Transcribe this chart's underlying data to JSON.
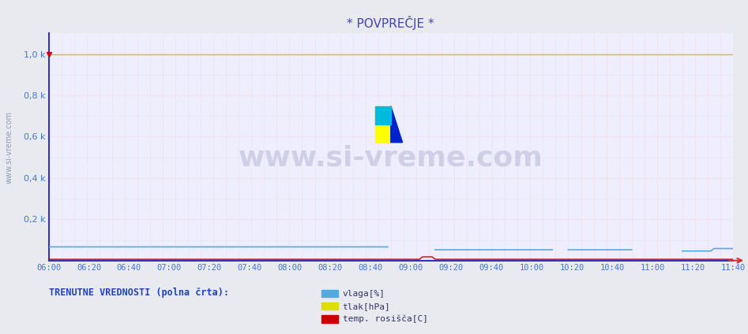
{
  "title": "* POVPREČJE *",
  "bg_color": "#e8eaf0",
  "plot_bg_color": "#eeeeff",
  "xmin": 0,
  "xmax": 216,
  "ymin": 0,
  "ymax": 1100,
  "yticks": [
    200,
    400,
    600,
    800,
    1000
  ],
  "ytick_labels": [
    "0,2 k",
    "0,4 k",
    "0,6 k",
    "0,8 k",
    "1,0 k"
  ],
  "xtick_labels": [
    "06:00",
    "06:20",
    "06:40",
    "07:00",
    "07:20",
    "07:40",
    "08:00",
    "08:20",
    "08:40",
    "09:00",
    "09:20",
    "09:40",
    "10:00",
    "10:20",
    "10:40",
    "11:00",
    "11:20",
    "11:40"
  ],
  "ylabel_text": "www.si-vreme.com",
  "watermark_text": "www.si-vreme.com",
  "bottom_text": "TRENUTNE VREDNOSTI (polna črta):",
  "legend_items": [
    {
      "label": "vlaga[%]",
      "color": "#55aadd"
    },
    {
      "label": "tlak[hPa]",
      "color": "#dddd00"
    },
    {
      "label": "temp. rosišča[C]",
      "color": "#cc0000"
    }
  ],
  "title_color": "#4444aa",
  "tick_label_color": "#4477cc",
  "axis_left_color": "#3333bb",
  "axis_bottom_color": "#3333bb",
  "red_grid_color": "#ffcccc",
  "grey_grid_color": "#ddddee",
  "vlaga_color": "#55aadd",
  "tlak_color": "#cccc00",
  "temp_color": "#cc0000",
  "ylabel_color": "#7788aa"
}
